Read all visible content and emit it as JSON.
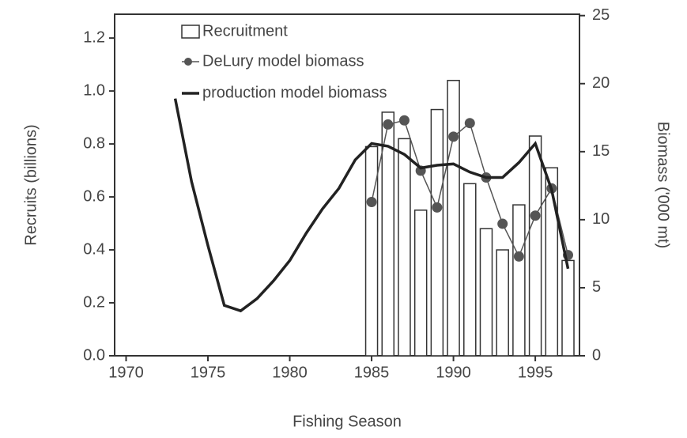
{
  "chart_data": {
    "type": "bar_line",
    "xlabel": "Fishing Season",
    "ylabel": "Recruits (billions)",
    "y2label": "Biomass ('000 mt)",
    "x": [
      1973,
      1974,
      1975,
      1976,
      1977,
      1978,
      1979,
      1980,
      1981,
      1982,
      1983,
      1984,
      1985,
      1986,
      1987,
      1988,
      1989,
      1990,
      1991,
      1992,
      1993,
      1994,
      1995,
      1996,
      1997
    ],
    "series": [
      {
        "name": "Recruitment",
        "type": "bar",
        "color": "#ffffff",
        "values": [
          null,
          null,
          null,
          null,
          null,
          null,
          null,
          null,
          null,
          null,
          null,
          null,
          0.79,
          0.92,
          0.82,
          0.55,
          0.93,
          1.04,
          0.65,
          0.48,
          0.4,
          0.57,
          0.83,
          0.71,
          0.36
        ]
      },
      {
        "name": "DeLury model biomass",
        "type": "line_marker",
        "axis": "y2",
        "color": "#555555",
        "values": [
          null,
          null,
          null,
          null,
          null,
          null,
          null,
          null,
          null,
          null,
          null,
          null,
          11.3,
          17.0,
          17.3,
          13.6,
          10.9,
          16.1,
          17.1,
          13.1,
          9.7,
          7.3,
          10.3,
          12.3,
          7.4
        ]
      },
      {
        "name": "production model biomass",
        "type": "line",
        "axis": "y2",
        "color": "#222222",
        "values": [
          18.9,
          12.8,
          8.1,
          3.7,
          3.3,
          4.2,
          5.5,
          7.0,
          9.0,
          10.8,
          12.3,
          14.4,
          15.6,
          15.4,
          14.8,
          13.8,
          14.0,
          14.1,
          13.5,
          13.1,
          13.1,
          14.2,
          15.6,
          12.2,
          6.4
        ]
      }
    ],
    "xlim": [
      1969.3,
      1997.7
    ],
    "xticks": [
      1970,
      1975,
      1980,
      1985,
      1990,
      1995
    ],
    "ylim": [
      0,
      1.29
    ],
    "yticks": [
      {
        "value": 0,
        "label": "0.0"
      },
      0.2,
      0.4,
      0.6,
      0.8,
      {
        "value": 1,
        "label": "1.0"
      },
      1.2
    ],
    "y2lim": [
      0,
      25.1
    ],
    "y2ticks": [
      0,
      5,
      10,
      15,
      20,
      25
    ],
    "legend": "top-left"
  }
}
